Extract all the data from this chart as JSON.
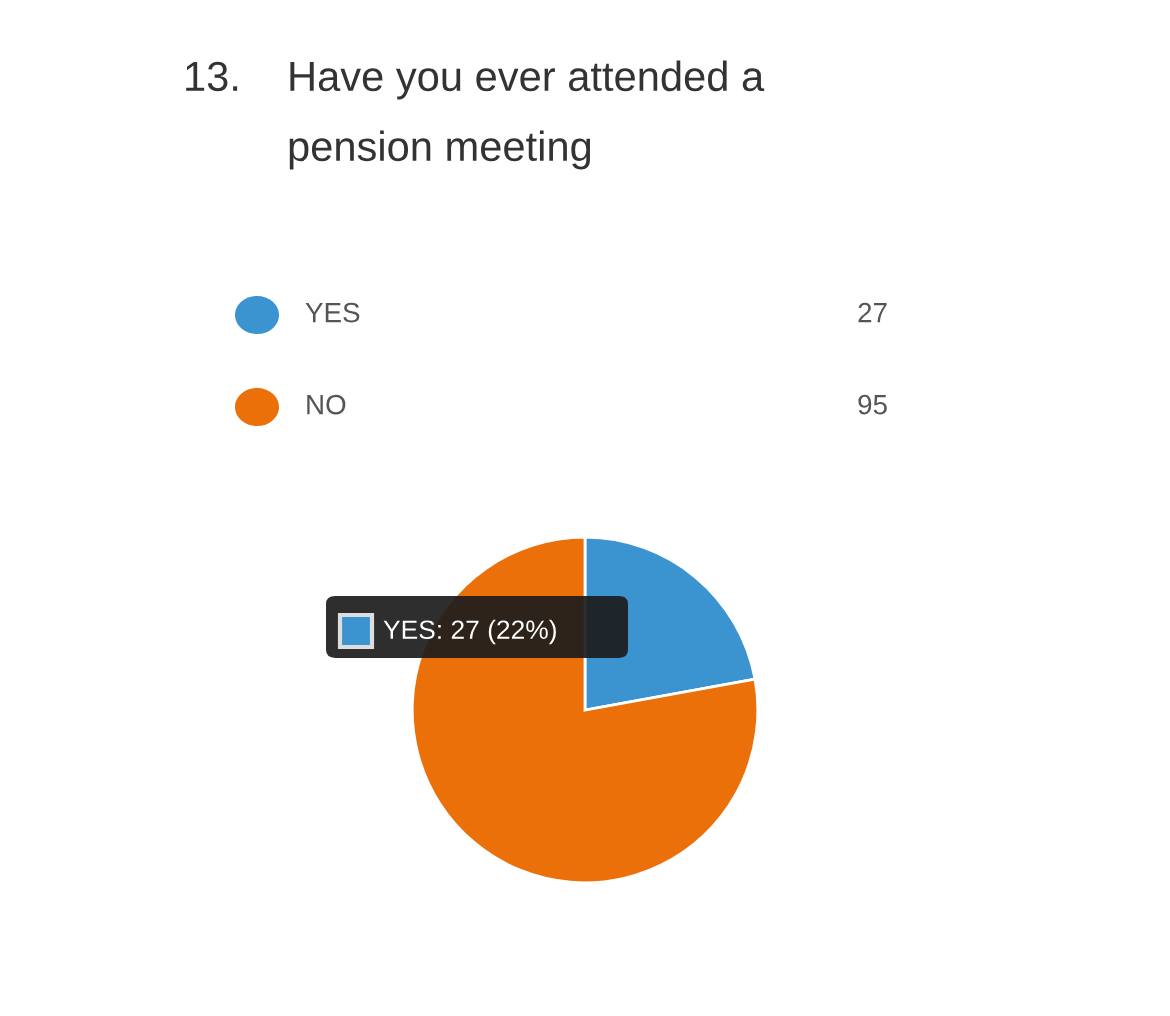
{
  "chart_data": {
    "type": "pie",
    "title": "13. Have you ever attended a pension meeting",
    "categories": [
      "YES",
      "NO"
    ],
    "values": [
      27,
      95
    ],
    "colors": [
      "#3b94d0",
      "#eb7009"
    ],
    "legend": "top",
    "data_labels": true,
    "annotations": [
      "YES: 27 (22%)"
    ]
  }
}
